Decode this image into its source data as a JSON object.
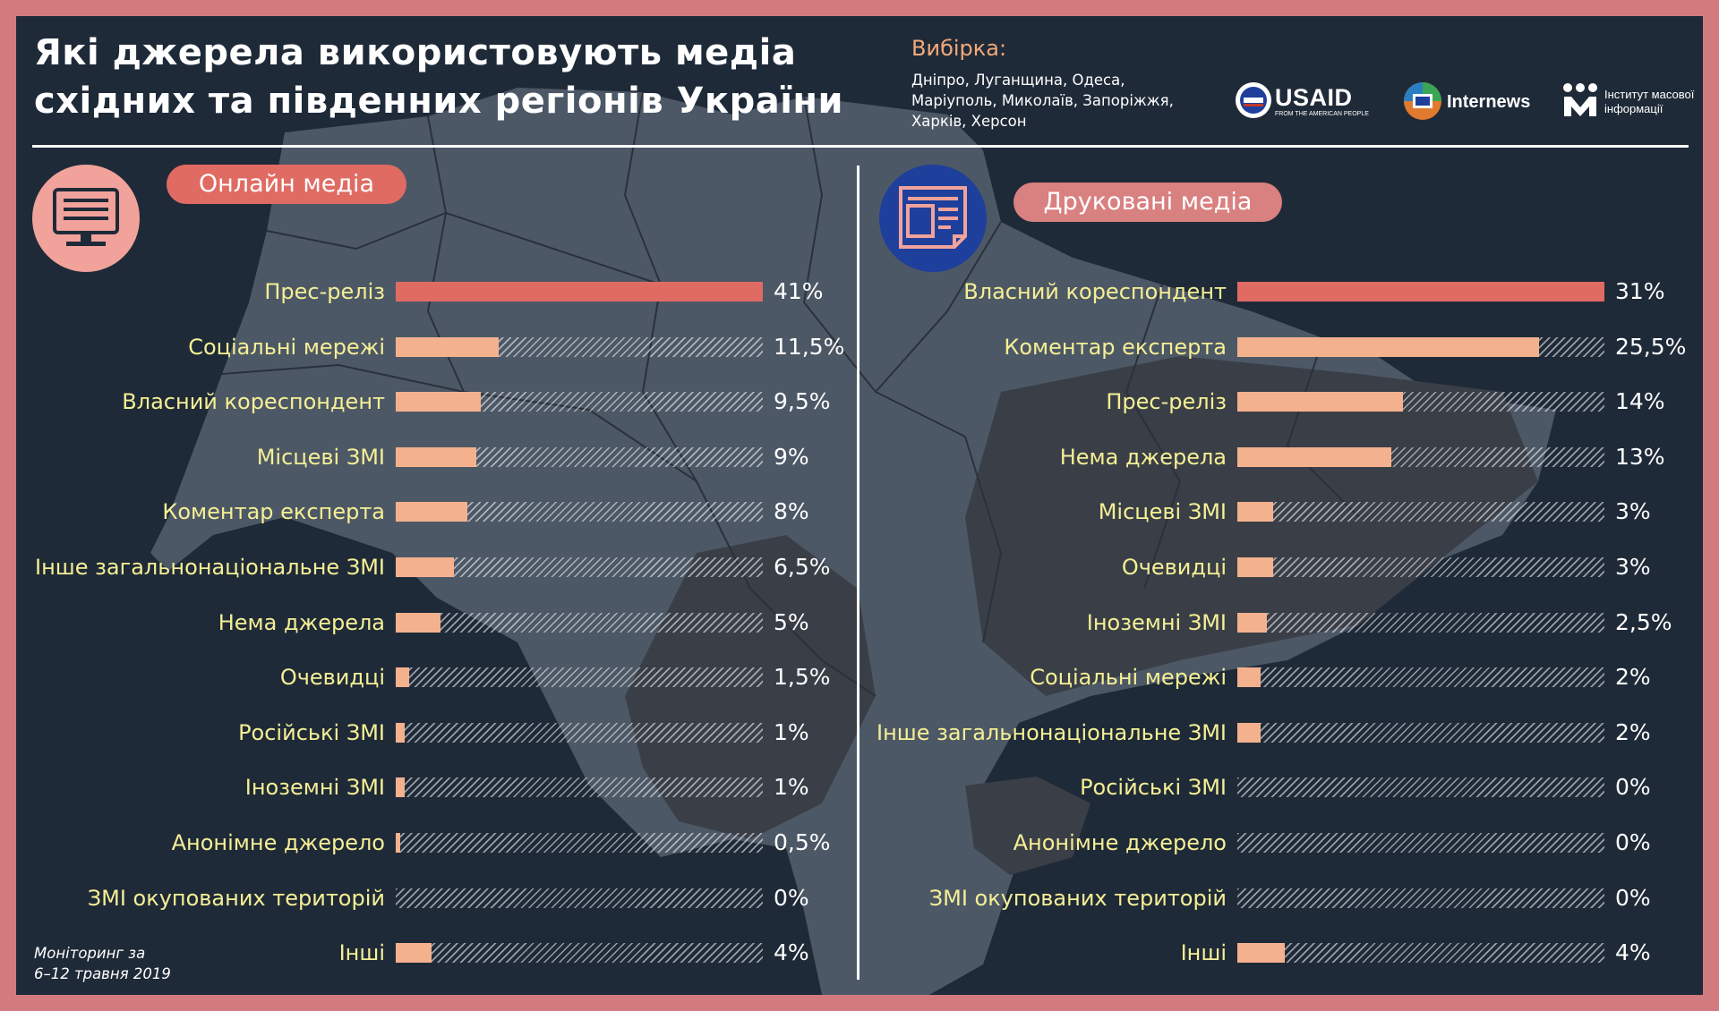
{
  "header": {
    "title_line1": "Які джерела використовують медіа",
    "title_line2": "східних та південних регіонів України",
    "sample_label": "Вибірка:",
    "sample_line1": "Дніпро, Луганщина, Одеса,",
    "sample_line2": "Маріуполь, Миколаїв, Запоріжжя,",
    "sample_line3": "Харків, Херсон"
  },
  "logos": {
    "usaid": "USAID",
    "usaid_sub": "FROM THE AMERICAN PEOPLE",
    "internews": "Internews",
    "imi_line1": "Інститут масової",
    "imi_line2": "інформації"
  },
  "footnote": {
    "line1": "Моніторинг за",
    "line2": "6–12 травня 2019"
  },
  "colors": {
    "background": "#1f2a38",
    "border": "#d17b7e",
    "top_bar": "#e06b63",
    "bar": "#f4b18e",
    "label": "#f5ef95",
    "online_icon_circle": "#f0a29b",
    "print_icon_circle": "#1e3f9c"
  },
  "icons": {
    "online": "monitor-icon",
    "print": "newspaper-icon"
  },
  "chart_data": [
    {
      "type": "bar",
      "orientation": "horizontal",
      "title": "Онлайн медіа",
      "categories": [
        "Прес-реліз",
        "Соціальні мережі",
        "Власний кореспондент",
        "Місцеві ЗМІ",
        "Коментар експерта",
        "Інше загальнонаціональне ЗМІ",
        "Нема джерела",
        "Очевидці",
        "Російські ЗМІ",
        "Іноземні ЗМІ",
        "Анонімне джерело",
        "ЗМІ окупованих територій",
        "Інші"
      ],
      "values": [
        41,
        11.5,
        9.5,
        9,
        8,
        6.5,
        5,
        1.5,
        1,
        1,
        0.5,
        0,
        4
      ],
      "value_labels": [
        "41%",
        "11,5%",
        "9,5%",
        "9%",
        "8%",
        "6,5%",
        "5%",
        "1,5%",
        "1%",
        "1%",
        "0,5%",
        "0%",
        "4%"
      ],
      "max": 41
    },
    {
      "type": "bar",
      "orientation": "horizontal",
      "title": "Друковані медіа",
      "categories": [
        "Власний кореспондент",
        "Коментар експерта",
        "Прес-реліз",
        "Нема джерела",
        "Місцеві ЗМІ",
        "Очевидці",
        "Іноземні ЗМІ",
        "Соціальні мережі",
        "Інше загальнонаціональне ЗМІ",
        "Російські ЗМІ",
        "Анонімне джерело",
        "ЗМІ окупованих територій",
        "Інші"
      ],
      "values": [
        31,
        25.5,
        14,
        13,
        3,
        3,
        2.5,
        2,
        2,
        0,
        0,
        0,
        4
      ],
      "value_labels": [
        "31%",
        "25,5%",
        "14%",
        "13%",
        "3%",
        "3%",
        "2,5%",
        "2%",
        "2%",
        "0%",
        "0%",
        "0%",
        "4%"
      ],
      "max": 31
    }
  ]
}
